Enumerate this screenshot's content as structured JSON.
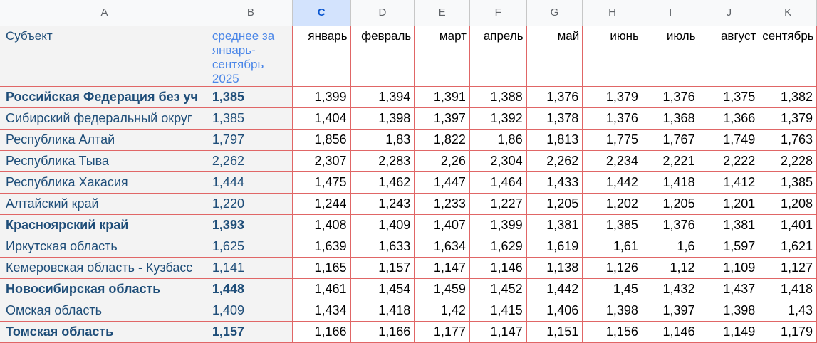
{
  "columns": [
    "A",
    "B",
    "C",
    "D",
    "E",
    "F",
    "G",
    "H",
    "I",
    "J",
    "K"
  ],
  "header_row": {
    "subject": "Субъект",
    "average": "среднее за январь-сентябрь 2025",
    "months": [
      "январь",
      "февраль",
      "март",
      "апрель",
      "май",
      "июнь",
      "июль",
      "август",
      "сентябрь"
    ]
  },
  "rows": [
    {
      "name": "Российская Федерация без уч",
      "avg": "1,385",
      "bold": true,
      "values": [
        "1,399",
        "1,394",
        "1,391",
        "1,388",
        "1,376",
        "1,379",
        "1,376",
        "1,375",
        "1,382"
      ]
    },
    {
      "name": "Сибирский федеральный округ",
      "avg": "1,385",
      "bold": false,
      "values": [
        "1,404",
        "1,398",
        "1,397",
        "1,392",
        "1,378",
        "1,376",
        "1,368",
        "1,366",
        "1,379"
      ]
    },
    {
      "name": "Республика Алтай",
      "avg": "1,797",
      "bold": false,
      "values": [
        "1,856",
        "1,83",
        "1,822",
        "1,86",
        "1,813",
        "1,775",
        "1,767",
        "1,749",
        "1,763"
      ]
    },
    {
      "name": "Республика Тыва",
      "avg": "2,262",
      "bold": false,
      "values": [
        "2,307",
        "2,283",
        "2,26",
        "2,304",
        "2,262",
        "2,234",
        "2,221",
        "2,222",
        "2,228"
      ]
    },
    {
      "name": "Республика Хакасия",
      "avg": "1,444",
      "bold": false,
      "values": [
        "1,475",
        "1,462",
        "1,447",
        "1,464",
        "1,433",
        "1,442",
        "1,418",
        "1,412",
        "1,385"
      ]
    },
    {
      "name": "Алтайский край",
      "avg": "1,220",
      "bold": false,
      "values": [
        "1,244",
        "1,243",
        "1,233",
        "1,227",
        "1,205",
        "1,202",
        "1,205",
        "1,201",
        "1,208"
      ]
    },
    {
      "name": "Красноярский край",
      "avg": "1,393",
      "bold": true,
      "values": [
        "1,408",
        "1,409",
        "1,407",
        "1,399",
        "1,381",
        "1,385",
        "1,376",
        "1,381",
        "1,401"
      ]
    },
    {
      "name": "Иркутская область",
      "avg": "1,625",
      "bold": false,
      "values": [
        "1,639",
        "1,633",
        "1,634",
        "1,629",
        "1,619",
        "1,61",
        "1,6",
        "1,597",
        "1,621"
      ]
    },
    {
      "name": "Кемеровская область - Кузбасс",
      "avg": "1,141",
      "bold": false,
      "values": [
        "1,165",
        "1,157",
        "1,147",
        "1,146",
        "1,138",
        "1,126",
        "1,12",
        "1,109",
        "1,127"
      ]
    },
    {
      "name": "Новосибирская область",
      "avg": "1,448",
      "bold": true,
      "values": [
        "1,461",
        "1,454",
        "1,459",
        "1,452",
        "1,442",
        "1,45",
        "1,432",
        "1,437",
        "1,418"
      ]
    },
    {
      "name": "Омская область",
      "avg": "1,409",
      "bold": false,
      "values": [
        "1,434",
        "1,418",
        "1,42",
        "1,415",
        "1,406",
        "1,398",
        "1,397",
        "1,398",
        "1,43"
      ]
    },
    {
      "name": "Томская область",
      "avg": "1,157",
      "bold": true,
      "values": [
        "1,166",
        "1,166",
        "1,177",
        "1,147",
        "1,151",
        "1,156",
        "1,146",
        "1,149",
        "1,179"
      ]
    }
  ],
  "selected_column": "C",
  "colors": {
    "grid_red": "#e06666",
    "selection": "#d3e3fd",
    "label_text": "#1f4e79"
  }
}
